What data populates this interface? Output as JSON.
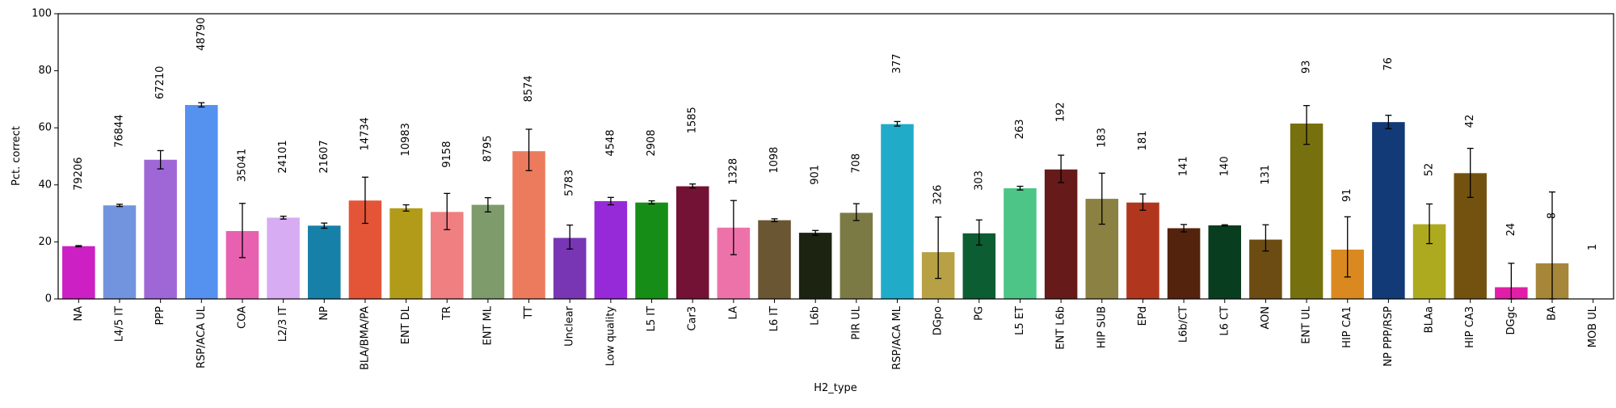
{
  "chart_data": {
    "type": "bar",
    "xlabel": "H2_type",
    "ylabel": "Pct. correct",
    "ylim": [
      0,
      100
    ],
    "yticks": [
      0,
      20,
      40,
      60,
      80,
      100
    ],
    "grid": false,
    "legend": "none",
    "categories": [
      "NA",
      "L4/5 IT",
      "PPP",
      "RSP/ACA UL",
      "COA",
      "L2/3 IT",
      "NP",
      "BLA/BMA/PA",
      "ENT DL",
      "TR",
      "ENT ML",
      "TT",
      "Unclear",
      "Low quality",
      "L5 IT",
      "Car3",
      "LA",
      "L6 IT",
      "L6b",
      "PIR UL",
      "RSP/ACA ML",
      "DGpo",
      "PG",
      "L5 ET",
      "ENT L6b",
      "HIP SUB",
      "EPd",
      "L6b/CT",
      "L6 CT",
      "AON",
      "ENT UL",
      "HIP CA1",
      "NP PPP/RSP",
      "BLAa",
      "HIP CA3",
      "DGgc",
      "BA",
      "MOB UL"
    ],
    "values": [
      18.5,
      32.8,
      48.8,
      68.0,
      23.8,
      28.5,
      25.7,
      34.5,
      31.8,
      30.5,
      33.0,
      51.8,
      21.4,
      34.3,
      33.8,
      39.5,
      25.0,
      27.6,
      23.2,
      30.2,
      61.3,
      16.4,
      23.0,
      38.8,
      45.4,
      35.1,
      33.8,
      24.8,
      25.8,
      20.8,
      61.5,
      17.3,
      62.0,
      26.2,
      44.1,
      4.1,
      12.5,
      0.0
    ],
    "errors": [
      [
        18.3,
        18.7
      ],
      [
        32.4,
        33.2
      ],
      [
        45.6,
        52.0
      ],
      [
        67.3,
        68.8
      ],
      [
        14.5,
        33.5
      ],
      [
        28.0,
        29.0
      ],
      [
        24.8,
        26.6
      ],
      [
        26.5,
        42.7
      ],
      [
        30.8,
        33.0
      ],
      [
        24.3,
        37.0
      ],
      [
        30.5,
        35.5
      ],
      [
        45.0,
        59.5
      ],
      [
        17.5,
        25.9
      ],
      [
        33.0,
        35.6
      ],
      [
        33.3,
        34.4
      ],
      [
        38.9,
        40.3
      ],
      [
        15.5,
        34.5
      ],
      [
        27.1,
        28.1
      ],
      [
        22.3,
        24.0
      ],
      [
        27.5,
        33.4
      ],
      [
        60.6,
        62.2
      ],
      [
        7.2,
        28.7
      ],
      [
        18.9,
        27.7
      ],
      [
        38.2,
        39.5
      ],
      [
        40.8,
        50.4
      ],
      [
        26.2,
        44.1
      ],
      [
        31.1,
        36.8
      ],
      [
        23.5,
        26.1
      ],
      [
        25.6,
        26.0
      ],
      [
        16.8,
        26.0
      ],
      [
        54.2,
        67.8
      ],
      [
        7.7,
        28.8
      ],
      [
        59.7,
        64.4
      ],
      [
        19.4,
        33.3
      ],
      [
        35.6,
        52.8
      ],
      [
        0,
        12.5
      ],
      [
        0,
        37.5
      ],
      null
    ],
    "bar_labels": [
      "79206",
      "76844",
      "67210",
      "48790",
      "35041",
      "24101",
      "21607",
      "14734",
      "10983",
      "9158",
      "8795",
      "8574",
      "5783",
      "4548",
      "2908",
      "1585",
      "1328",
      "1098",
      "901",
      "708",
      "377",
      "326",
      "303",
      "263",
      "192",
      "183",
      "181",
      "141",
      "140",
      "131",
      "93",
      "91",
      "76",
      "52",
      "42",
      "24",
      "8",
      "1"
    ],
    "label_heights": [
      38,
      53,
      70,
      87,
      41,
      44,
      44,
      52,
      50,
      46,
      48,
      69,
      36,
      50,
      50,
      58,
      40,
      44,
      40,
      44,
      79,
      33,
      38,
      56,
      62,
      53,
      52,
      43,
      43,
      40,
      79,
      34,
      80,
      43,
      60,
      22,
      28,
      17
    ],
    "colors": [
      "#cc1fc4",
      "#7293dd",
      "#9f66d6",
      "#5591ef",
      "#e761b0",
      "#d7acf2",
      "#1780a8",
      "#e45538",
      "#b29b19",
      "#ef7f81",
      "#7d9b6b",
      "#ec7b5e",
      "#7836b5",
      "#962ad9",
      "#168d16",
      "#731234",
      "#ee72aa",
      "#6b5634",
      "#1d2311",
      "#7b7a45",
      "#20acc8",
      "#b7a144",
      "#0c5d32",
      "#4cc587",
      "#661b1a",
      "#8a8142",
      "#b1361e",
      "#54230e",
      "#093d1f",
      "#6c4c13",
      "#77700e",
      "#d9891f",
      "#113a77",
      "#adaa20",
      "#735210",
      "#e01ea7",
      "#a68639",
      "#8c8c8c"
    ]
  }
}
